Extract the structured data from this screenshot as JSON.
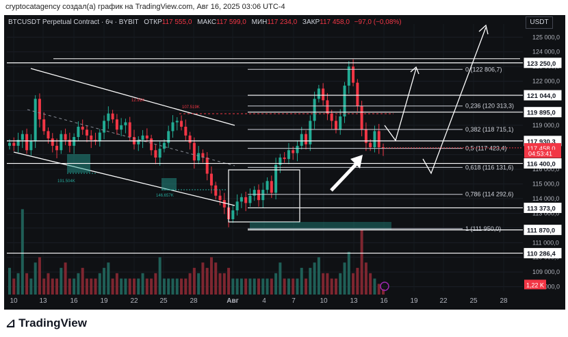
{
  "header": {
    "attribution": "cryptocatagency создал(а) график на TradingView.com, Авг 16, 2025 03:06 UTC-4"
  },
  "symbol_bar": {
    "symbol": "BTCUSDT Perpetual Contract · 6ч · BYBIT",
    "open_label": "ОТКР",
    "open_value": "117 555,0",
    "high_label": "МАКС",
    "high_value": "117 599,0",
    "low_label": "МИН",
    "low_value": "117 234,0",
    "close_label": "ЗАКР",
    "close_value": "117 458,0",
    "change": "−97,0 (−0,08%)"
  },
  "currency_button": "USDT",
  "footer": {
    "brand": "TradingView"
  },
  "colors": {
    "bull": "#22ab94",
    "bear": "#f23645",
    "background": "#0f1114",
    "lines": "#ffffff"
  },
  "chart_data": {
    "type": "candlestick",
    "ylim": [
      107700,
      125900
    ],
    "y_ticks": [
      "125 000,0",
      "124 000,0",
      "123 000,0",
      "122 000,0",
      "121 000,0",
      "120 000,0",
      "119 000,0",
      "118 000,0",
      "117 000,0",
      "116 000,0",
      "115 000,0",
      "114 000,0",
      "113 000,0",
      "112 000,0",
      "111 000,0",
      "110 000,0",
      "109 000,0",
      "108 000,0"
    ],
    "x_ticks": [
      "10",
      "13",
      "16",
      "19",
      "22",
      "25",
      "28",
      "Авг",
      "4",
      "7",
      "10",
      "13",
      "16",
      "19",
      "22",
      "25",
      "28"
    ],
    "price_labels": [
      {
        "text": "123 250,0",
        "price": 123250,
        "style": "line"
      },
      {
        "text": "121 044,0",
        "price": 121044,
        "style": "line"
      },
      {
        "text": "119 895,0",
        "price": 119895,
        "style": "line"
      },
      {
        "text": "117 930,3",
        "price": 117930.3,
        "style": "line"
      },
      {
        "text": "117 458,0",
        "price": 117458,
        "style": "current"
      },
      {
        "text": "04:53:41",
        "price": 117100,
        "style": "timer"
      },
      {
        "text": "116 400,0",
        "price": 116400,
        "style": "line"
      },
      {
        "text": "113 373,0",
        "price": 113373,
        "style": "line"
      },
      {
        "text": "111 870,0",
        "price": 111870,
        "style": "line"
      },
      {
        "text": "110 286,4",
        "price": 110286.4,
        "style": "line"
      },
      {
        "text": "1,22 K",
        "price": 108150,
        "style": "volume"
      }
    ],
    "fib_levels": [
      {
        "label": "0 (122 806,7)",
        "price": 122806.7
      },
      {
        "label": "0,236 (120 313,3)",
        "price": 120313.3
      },
      {
        "label": "0,382 (118 715,1)",
        "price": 118715.1
      },
      {
        "label": "0,5 (117 423,4)",
        "price": 117423.4
      },
      {
        "label": "0,618 (116 131,6)",
        "price": 116131.6
      },
      {
        "label": "0,786 (114 292,6)",
        "price": 114292.6
      },
      {
        "label": "1 (111 950,0)",
        "price": 111950
      }
    ],
    "annotations": [
      "191.504K",
      "146.657K",
      "107.519K",
      "12.91K"
    ],
    "close_series": [
      117800,
      117600,
      118000,
      118400,
      117300,
      117900,
      120800,
      119400,
      118600,
      118100,
      117600,
      117300,
      118400,
      118000,
      117600,
      118200,
      118900,
      118700,
      118300,
      118000,
      117900,
      118500,
      119300,
      119800,
      119400,
      118700,
      119000,
      119200,
      118200,
      117700,
      118000,
      118300,
      118100,
      117300,
      116800,
      117400,
      117800,
      118600,
      119200,
      119300,
      118900,
      118300,
      117800,
      116600,
      117100,
      116800,
      115700,
      114900,
      114200,
      113900,
      113400,
      112600,
      113200,
      113800,
      114100,
      113700,
      114200,
      114600,
      113900,
      114600,
      115200,
      114400,
      116300,
      116800,
      116700,
      117300,
      117100,
      117600,
      118400,
      117700,
      119300,
      120800,
      121500,
      120700,
      119800,
      119300,
      118700,
      119600,
      121700,
      123000,
      121900,
      120300,
      118700,
      117800,
      117500,
      118600,
      117500,
      117458
    ],
    "volume_k": [
      0.5,
      0.3,
      0.4,
      1.6,
      0.4,
      0.3,
      0.6,
      0.7,
      0.3,
      0.4,
      0.3,
      0.3,
      0.5,
      0.6,
      0.3,
      0.3,
      0.4,
      0.5,
      0.3,
      0.3,
      0.3,
      0.4,
      0.5,
      0.6,
      0.3,
      0.4,
      0.3,
      0.3,
      0.3,
      0.3,
      0.3,
      0.4,
      0.3,
      0.3,
      0.4,
      0.7,
      0.3,
      0.3,
      0.3,
      0.3,
      0.3,
      0.3,
      0.4,
      0.5,
      0.4,
      0.6,
      0.5,
      0.7,
      0.6,
      0.4,
      0.4,
      0.5,
      0.3,
      0.3,
      0.3,
      0.3,
      0.3,
      0.3,
      0.3,
      0.3,
      0.3,
      0.3,
      0.4,
      0.6,
      0.3,
      0.3,
      0.3,
      0.3,
      0.5,
      0.3,
      0.5,
      0.6,
      0.7,
      0.4,
      0.4,
      0.3,
      0.3,
      0.4,
      0.6,
      0.8,
      0.4,
      0.5,
      1.22,
      0.6,
      0.4,
      0.3,
      0.2,
      0.1
    ]
  }
}
